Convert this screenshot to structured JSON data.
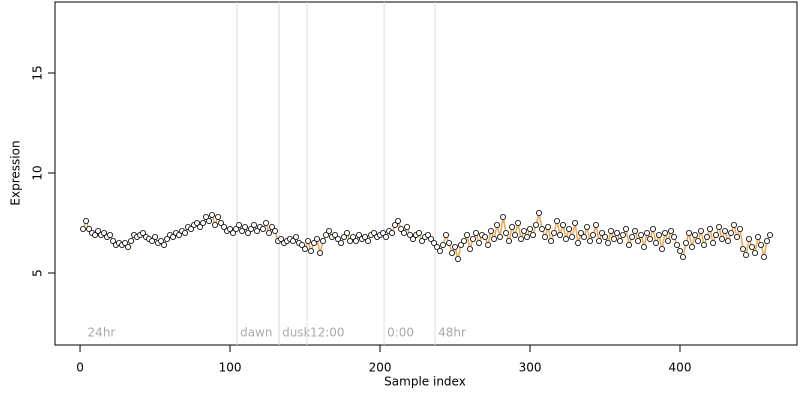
{
  "chart_data": {
    "type": "scatter",
    "xlabel": "Sample index",
    "ylabel": "Expression",
    "xlim": [
      -16.7,
      478
    ],
    "ylim": [
      1.4,
      18.55
    ],
    "xticks": [
      0,
      100,
      200,
      300,
      400
    ],
    "yticks": [
      5,
      10,
      15
    ],
    "grid": false,
    "annotations": [
      {
        "x": 3,
        "label": "24hr",
        "line": false
      },
      {
        "x": 104.7,
        "label": "dawn",
        "line": true
      },
      {
        "x": 132.7,
        "label": "dusk",
        "line": true
      },
      {
        "x": 151.3,
        "label": "12:00",
        "line": true
      },
      {
        "x": 202.7,
        "label": "0:00",
        "line": true
      },
      {
        "x": 236.7,
        "label": "48hr",
        "line": true
      }
    ],
    "annotation_y": 2.0,
    "series": [
      {
        "color": "#e9a65a",
        "marker_fill": "#ffffff",
        "marker_edge": "#000000",
        "x": [
          2,
          4,
          6,
          8,
          10,
          12,
          14,
          16,
          18,
          20,
          22,
          24,
          26,
          28,
          30,
          32,
          34,
          36,
          38,
          40,
          42,
          44,
          46,
          48,
          50,
          52,
          54,
          56,
          58,
          60,
          62,
          64,
          66,
          68,
          70,
          72,
          74,
          76,
          78,
          80,
          82,
          84,
          86,
          88,
          90,
          92,
          94,
          96,
          98,
          100,
          102,
          104,
          106,
          108,
          110,
          112,
          114,
          116,
          118,
          120,
          122,
          124,
          126,
          128,
          130,
          132,
          134,
          136,
          138,
          140,
          142,
          144,
          146,
          148,
          150,
          152,
          154,
          156,
          158,
          160,
          162,
          164,
          166,
          168,
          170,
          172,
          174,
          176,
          178,
          180,
          182,
          184,
          186,
          188,
          190,
          192,
          194,
          196,
          198,
          200,
          202,
          204,
          206,
          208,
          210,
          212,
          214,
          216,
          218,
          220,
          222,
          224,
          226,
          228,
          230,
          232,
          234,
          236,
          238,
          240,
          242,
          244,
          246,
          248,
          250,
          252,
          254,
          256,
          258,
          260,
          262,
          264,
          266,
          268,
          270,
          272,
          274,
          276,
          278,
          280,
          282,
          284,
          286,
          288,
          290,
          292,
          294,
          296,
          298,
          300,
          302,
          304,
          306,
          308,
          310,
          312,
          314,
          316,
          318,
          320,
          322,
          324,
          326,
          328,
          330,
          332,
          334,
          336,
          338,
          340,
          342,
          344,
          346,
          348,
          350,
          352,
          354,
          356,
          358,
          360,
          362,
          364,
          366,
          368,
          370,
          372,
          374,
          376,
          378,
          380,
          382,
          384,
          386,
          388,
          390,
          392,
          394,
          396,
          398,
          400,
          402,
          404,
          406,
          408,
          410,
          412,
          414,
          416,
          418,
          420,
          422,
          424,
          426,
          428,
          430,
          432,
          434,
          436,
          438,
          440,
          442,
          444,
          446,
          448,
          450,
          452,
          454,
          456,
          458,
          460
        ],
        "values": [
          7.2,
          7.6,
          7.2,
          7.0,
          6.9,
          7.1,
          6.9,
          7.0,
          6.8,
          6.9,
          6.6,
          6.4,
          6.5,
          6.4,
          6.5,
          6.3,
          6.6,
          6.9,
          6.8,
          6.9,
          7.0,
          6.8,
          6.7,
          6.6,
          6.8,
          6.5,
          6.6,
          6.4,
          6.7,
          6.9,
          6.8,
          7.0,
          6.9,
          7.1,
          7.0,
          7.3,
          7.2,
          7.4,
          7.5,
          7.3,
          7.5,
          7.8,
          7.6,
          7.9,
          7.4,
          7.8,
          7.5,
          7.3,
          7.1,
          7.2,
          7.0,
          7.2,
          7.4,
          7.1,
          7.3,
          7.0,
          7.2,
          7.4,
          7.1,
          7.3,
          7.2,
          7.5,
          7.0,
          7.3,
          7.1,
          6.6,
          6.7,
          6.5,
          6.6,
          6.7,
          6.6,
          6.8,
          6.5,
          6.4,
          6.2,
          6.6,
          6.1,
          6.5,
          6.7,
          6.0,
          6.6,
          6.9,
          7.1,
          6.8,
          6.9,
          6.7,
          6.5,
          6.8,
          7.0,
          6.6,
          6.8,
          6.6,
          6.9,
          6.7,
          6.8,
          6.6,
          6.9,
          7.0,
          6.8,
          6.9,
          7.0,
          6.8,
          7.1,
          7.0,
          7.4,
          7.6,
          7.2,
          7.0,
          7.3,
          6.9,
          6.7,
          6.9,
          7.0,
          6.6,
          6.8,
          6.9,
          6.7,
          6.5,
          6.3,
          6.1,
          6.4,
          6.9,
          6.5,
          6.0,
          6.3,
          5.7,
          6.4,
          6.6,
          6.9,
          6.2,
          6.7,
          7.0,
          6.5,
          6.9,
          6.8,
          6.4,
          7.1,
          6.7,
          7.4,
          6.8,
          7.8,
          7.0,
          6.6,
          7.3,
          6.9,
          7.5,
          6.7,
          7.1,
          6.8,
          7.2,
          6.9,
          7.4,
          8.0,
          7.2,
          6.8,
          7.3,
          6.6,
          7.0,
          7.6,
          6.9,
          7.4,
          6.7,
          7.2,
          6.8,
          7.5,
          6.5,
          7.0,
          6.8,
          7.3,
          6.6,
          6.9,
          7.4,
          6.6,
          7.0,
          6.8,
          6.5,
          7.1,
          6.7,
          7.0,
          6.6,
          6.9,
          7.2,
          6.4,
          6.8,
          7.1,
          6.6,
          6.9,
          6.3,
          7.0,
          6.7,
          7.2,
          6.5,
          6.9,
          6.2,
          7.0,
          6.6,
          7.1,
          6.8,
          6.4,
          6.1,
          5.8,
          6.5,
          7.0,
          6.3,
          6.9,
          6.6,
          7.1,
          6.4,
          6.8,
          7.2,
          6.5,
          6.9,
          7.3,
          6.7,
          7.1,
          6.6,
          7.0,
          7.4,
          6.8,
          7.2,
          6.2,
          5.9,
          6.7,
          6.3,
          6.0,
          6.8,
          6.4,
          5.8,
          6.6,
          6.9
        ]
      }
    ]
  }
}
